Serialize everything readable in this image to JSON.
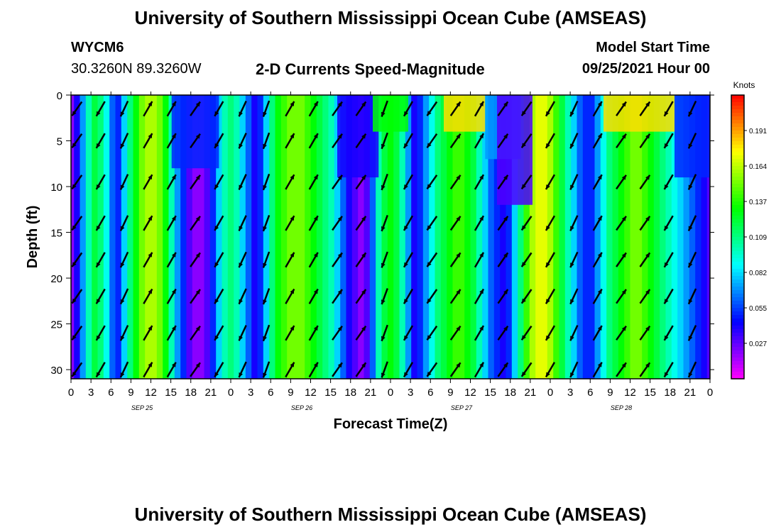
{
  "header": {
    "title_top": "University of Southern Mississippi Ocean Cube (AMSEAS)",
    "title_bottom": "University of Southern Mississippi Ocean Cube (AMSEAS)",
    "station": "WYCM6",
    "coords": "30.3260N  89.3260W",
    "subtitle": "2-D Currents Speed-Magnitude",
    "model_label": "Model Start Time",
    "model_time": "09/25/2021 Hour 00"
  },
  "chart_data": {
    "type": "heatmap",
    "title": "2-D Currents Speed-Magnitude",
    "xlabel": "Forecast Time(Z)",
    "ylabel": "Depth (ft)",
    "colorbar_label": "Knots",
    "x_range_hours": [
      0,
      108
    ],
    "y_range_ft": [
      0,
      31
    ],
    "x_tick_labels": [
      "0",
      "3",
      "6",
      "9",
      "12",
      "15",
      "18",
      "21",
      "0",
      "3",
      "6",
      "9",
      "12",
      "15",
      "18",
      "21",
      "0",
      "3",
      "6",
      "9",
      "12",
      "15",
      "18",
      "21",
      "0",
      "3",
      "6",
      "9",
      "12",
      "15",
      "18",
      "21",
      "0"
    ],
    "day_labels": [
      {
        "label": "SEP 25",
        "hour": 12
      },
      {
        "label": "SEP 26",
        "hour": 39
      },
      {
        "label": "SEP 27",
        "hour": 66
      },
      {
        "label": "SEP 28",
        "hour": 93
      }
    ],
    "y_ticks": [
      0,
      5,
      10,
      15,
      20,
      25,
      30
    ],
    "colorbar_ticks": [
      "0.191",
      "0.164",
      "0.137",
      "0.109",
      "0.082",
      "0.055",
      "0.027"
    ],
    "colorbar_range": [
      0.0,
      0.218
    ],
    "speed_profile_mid_depth": {
      "hours": [
        0,
        1,
        2,
        3,
        4,
        5,
        6,
        7,
        8,
        9,
        10,
        11,
        12,
        13,
        14,
        15,
        16,
        17,
        18,
        19,
        20,
        21,
        22,
        23,
        24,
        25,
        26,
        27,
        28,
        29,
        30,
        31,
        32,
        33,
        34,
        35,
        36,
        37,
        38,
        39,
        40,
        41,
        42,
        43,
        44,
        45,
        46,
        47,
        48,
        49,
        50,
        51,
        52,
        53,
        54,
        55,
        56,
        57,
        58,
        59,
        60,
        61,
        62,
        63,
        64,
        65,
        66,
        67,
        68,
        69,
        70,
        71,
        72,
        73,
        74,
        75,
        76,
        77,
        78,
        79,
        80,
        81,
        82,
        83,
        84,
        85,
        86,
        87,
        88,
        89,
        90,
        91,
        92,
        93,
        94,
        95,
        96,
        97,
        98,
        99,
        100,
        101,
        102,
        103,
        104,
        105,
        106,
        107,
        108
      ],
      "knots": [
        0.02,
        0.04,
        0.07,
        0.1,
        0.12,
        0.11,
        0.09,
        0.06,
        0.05,
        0.08,
        0.11,
        0.13,
        0.15,
        0.16,
        0.16,
        0.15,
        0.13,
        0.1,
        0.07,
        0.05,
        0.03,
        0.02,
        0.02,
        0.03,
        0.05,
        0.08,
        0.1,
        0.11,
        0.1,
        0.08,
        0.06,
        0.04,
        0.05,
        0.08,
        0.11,
        0.13,
        0.14,
        0.15,
        0.15,
        0.15,
        0.14,
        0.13,
        0.12,
        0.11,
        0.1,
        0.08,
        0.06,
        0.04,
        0.03,
        0.02,
        0.03,
        0.06,
        0.1,
        0.12,
        0.13,
        0.12,
        0.1,
        0.07,
        0.04,
        0.05,
        0.07,
        0.09,
        0.11,
        0.12,
        0.13,
        0.14,
        0.14,
        0.13,
        0.12,
        0.1,
        0.08,
        0.06,
        0.05,
        0.04,
        0.05,
        0.08,
        0.11,
        0.14,
        0.16,
        0.17,
        0.17,
        0.16,
        0.14,
        0.12,
        0.1,
        0.08,
        0.06,
        0.05,
        0.05,
        0.07,
        0.09,
        0.11,
        0.12,
        0.13,
        0.14,
        0.15,
        0.15,
        0.14,
        0.13,
        0.12,
        0.11,
        0.1,
        0.09,
        0.08,
        0.07,
        0.06,
        0.05,
        0.04,
        0.03
      ]
    },
    "surface_anomalies": [
      {
        "hours": [
          17,
          25
        ],
        "depth_to": 8,
        "knots": 0.05
      },
      {
        "hours": [
          45,
          52
        ],
        "depth_to": 9,
        "knots": 0.04
      },
      {
        "hours": [
          51,
          57
        ],
        "depth_to": 4,
        "knots": 0.13
      },
      {
        "hours": [
          63,
          70
        ],
        "depth_to": 4,
        "knots": 0.18
      },
      {
        "hours": [
          70,
          76
        ],
        "depth_to": 7,
        "knots": 0.07
      },
      {
        "hours": [
          72,
          78
        ],
        "depth_to": 12,
        "knots": 0.03
      },
      {
        "hours": [
          90,
          102
        ],
        "depth_to": 4,
        "knots": 0.18
      },
      {
        "hours": [
          102,
          108
        ],
        "depth_to": 9,
        "knots": 0.05
      }
    ],
    "vector_rows_depth_ft": [
      1.5,
      5,
      9.5,
      14,
      18,
      22,
      26,
      30
    ],
    "vector_hours": [
      1,
      5,
      9,
      13,
      17,
      21,
      25,
      29,
      33,
      37,
      41,
      45,
      49,
      53,
      57,
      61,
      65,
      69,
      73,
      77,
      81,
      85,
      89,
      93,
      97,
      101,
      105
    ],
    "vector_direction_deg": [
      215,
      210,
      205,
      30,
      30,
      35,
      210,
      205,
      200,
      30,
      30,
      35,
      35,
      200,
      210,
      215,
      35,
      30,
      35,
      215,
      210,
      205,
      30,
      35,
      35,
      210,
      205
    ]
  }
}
